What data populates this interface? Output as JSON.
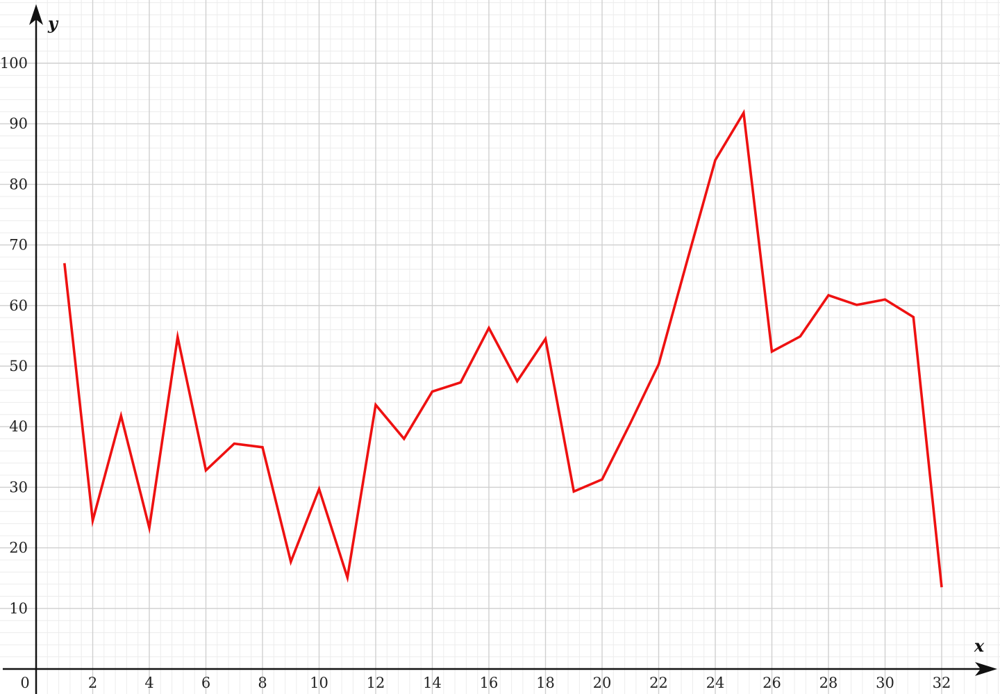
{
  "chart_data": {
    "type": "line",
    "title": "",
    "xlabel": "x",
    "ylabel": "y",
    "origin_label": "0",
    "xlim": [
      0,
      34
    ],
    "ylim": [
      0,
      110
    ],
    "x_ticks": [
      2,
      4,
      6,
      8,
      10,
      12,
      14,
      16,
      18,
      20,
      22,
      24,
      26,
      28,
      30,
      32
    ],
    "y_ticks": [
      10,
      20,
      30,
      40,
      50,
      60,
      70,
      80,
      90,
      100
    ],
    "grid": true,
    "minor_grid": true,
    "line_color": "#ee1111",
    "series": [
      {
        "x": [
          1,
          2,
          3,
          4,
          5,
          6,
          7,
          8,
          9,
          10,
          11,
          12,
          13,
          14,
          15,
          16,
          17,
          18,
          19,
          20,
          21,
          22,
          23,
          24,
          25,
          26,
          27,
          28,
          29,
          30,
          31,
          32
        ],
        "y": [
          67,
          24.5,
          41.8,
          23.3,
          54.8,
          32.8,
          37.2,
          36.6,
          17.7,
          29.7,
          15.1,
          43.6,
          38,
          45.8,
          47.3,
          56.3,
          47.5,
          54.5,
          29.3,
          31.3,
          40.6,
          50.3,
          67.3,
          84,
          91.8,
          52.4,
          54.9,
          61.7,
          60.1,
          61,
          58.1,
          13.5
        ]
      }
    ]
  }
}
